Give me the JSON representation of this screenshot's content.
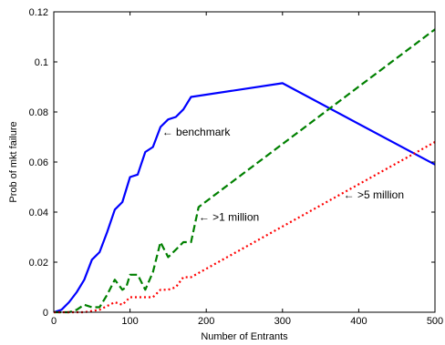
{
  "chart_data": {
    "type": "line",
    "title": "",
    "xlabel": "Number of Entrants",
    "ylabel": "Prob of mkt failure",
    "xlim": [
      0,
      500
    ],
    "ylim": [
      0,
      0.12
    ],
    "xticks": [
      0,
      100,
      200,
      300,
      400,
      500
    ],
    "xtick_labels": [
      "0",
      "100",
      "200",
      "300",
      "400",
      "500"
    ],
    "yticks": [
      0,
      0.02,
      0.04,
      0.06,
      0.08,
      0.1,
      0.12
    ],
    "ytick_labels": [
      "0",
      "0.02",
      "0.04",
      "0.06",
      "0.08",
      "0.1",
      "0.12"
    ],
    "grid": false,
    "legend": "none",
    "series": [
      {
        "name": "benchmark",
        "color": "#0000ff",
        "style": "solid",
        "x": [
          0,
          10,
          20,
          30,
          40,
          50,
          60,
          70,
          80,
          90,
          100,
          110,
          120,
          130,
          140,
          150,
          160,
          170,
          180,
          300,
          500
        ],
        "y": [
          0,
          0.001,
          0.004,
          0.008,
          0.013,
          0.021,
          0.024,
          0.032,
          0.041,
          0.044,
          0.054,
          0.055,
          0.064,
          0.066,
          0.074,
          0.077,
          0.078,
          0.081,
          0.086,
          0.0915,
          0.059
        ]
      },
      {
        "name": ">1 million",
        "color": "#008000",
        "style": "dashed",
        "x": [
          0,
          20,
          30,
          40,
          50,
          60,
          70,
          80,
          90,
          95,
          100,
          110,
          120,
          130,
          140,
          150,
          160,
          170,
          180,
          190,
          500
        ],
        "y": [
          0,
          0,
          0.001,
          0.003,
          0.002,
          0.002,
          0.007,
          0.013,
          0.009,
          0.01,
          0.015,
          0.015,
          0.009,
          0.016,
          0.028,
          0.022,
          0.025,
          0.028,
          0.028,
          0.042,
          0.113
        ]
      },
      {
        "name": ">5 million",
        "color": "#ff0000",
        "style": "dotted",
        "x": [
          0,
          40,
          60,
          80,
          90,
          100,
          110,
          120,
          130,
          140,
          150,
          160,
          170,
          180,
          500
        ],
        "y": [
          0,
          0,
          0.001,
          0.004,
          0.003,
          0.006,
          0.006,
          0.006,
          0.006,
          0.009,
          0.009,
          0.01,
          0.014,
          0.014,
          0.068
        ]
      }
    ],
    "annotations": [
      {
        "text": "← benchmark",
        "x": 142,
        "y": 0.072
      },
      {
        "text": "← >1 million",
        "x": 190,
        "y": 0.038
      },
      {
        "text": "← >5 million",
        "x": 380,
        "y": 0.047
      }
    ]
  }
}
